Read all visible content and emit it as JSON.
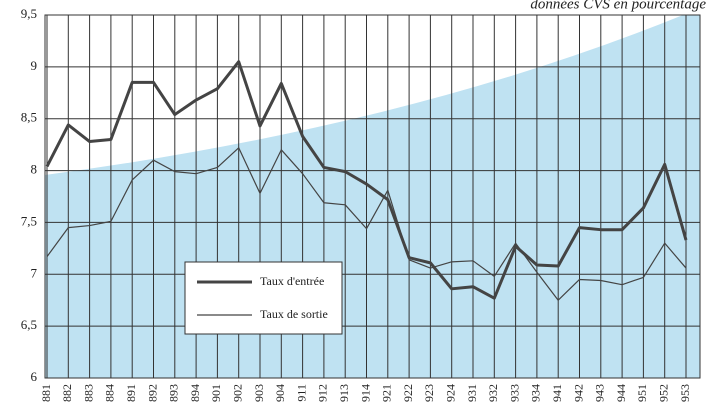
{
  "chart_data": {
    "type": "line",
    "subtitle": "données CVS en pourcentage",
    "categories": [
      "881",
      "882",
      "883",
      "884",
      "891",
      "892",
      "893",
      "894",
      "901",
      "902",
      "903",
      "904",
      "911",
      "912",
      "913",
      "914",
      "921",
      "922",
      "923",
      "924",
      "931",
      "932",
      "933",
      "934",
      "941",
      "942",
      "943",
      "944",
      "951",
      "952",
      "953"
    ],
    "series": [
      {
        "name": "Taux d'entrée",
        "color": "#444444",
        "width": 3,
        "values": [
          8.04,
          8.44,
          8.28,
          8.3,
          8.85,
          8.85,
          8.54,
          8.68,
          8.79,
          9.05,
          8.43,
          8.84,
          8.33,
          8.03,
          7.99,
          7.87,
          7.72,
          7.16,
          7.11,
          6.86,
          6.88,
          6.77,
          7.27,
          7.09,
          7.08,
          7.45,
          7.43,
          7.43,
          7.64,
          8.06,
          7.33
        ]
      },
      {
        "name": "Taux de sortie",
        "color": "#444444",
        "width": 1.2,
        "values": [
          7.17,
          7.45,
          7.47,
          7.51,
          7.91,
          8.1,
          7.99,
          7.97,
          8.03,
          8.22,
          7.78,
          8.2,
          7.97,
          7.69,
          7.67,
          7.44,
          7.81,
          7.14,
          7.06,
          7.12,
          7.13,
          6.98,
          7.3,
          7.02,
          6.75,
          6.95,
          6.94,
          6.9,
          6.97,
          7.3,
          7.06
        ]
      }
    ],
    "ylim": [
      6,
      9.5
    ],
    "yticks": [
      6,
      {
        "value": 6.5,
        "label": "6,5"
      },
      7,
      {
        "value": 7.5,
        "label": "7,5"
      },
      8,
      {
        "value": 8.5,
        "label": "8,5"
      },
      9,
      {
        "value": 9.5,
        "label": "9,5"
      }
    ],
    "grid": true
  }
}
